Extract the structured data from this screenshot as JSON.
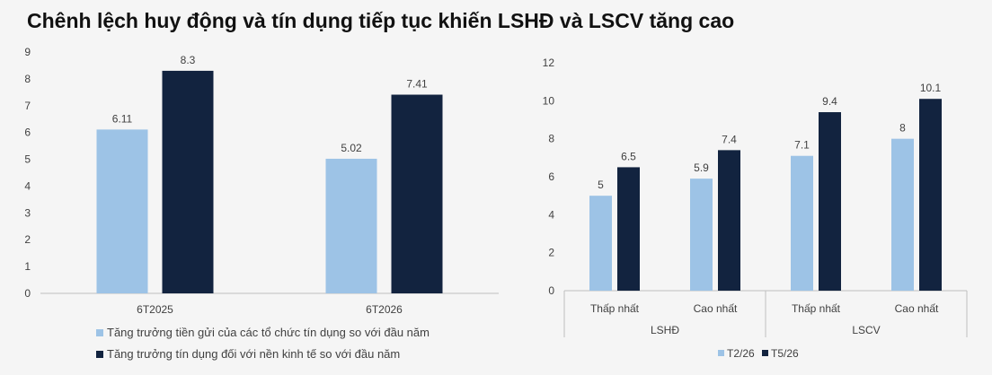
{
  "title": "Chênh lệch huy động và tín dụng tiếp tục khiến LSHĐ và LSCV tăng cao",
  "colors": {
    "light": "#9dc3e6",
    "dark": "#12233f",
    "axis": "#bfbfbf",
    "text": "#404040"
  },
  "chart_data": [
    {
      "type": "bar",
      "categories": [
        "6T2025",
        "6T2026"
      ],
      "series": [
        {
          "name": "Tăng trưởng tiền gửi của các tổ chức tín dụng so với đầu năm",
          "values": [
            6.11,
            5.02
          ],
          "labels": [
            "6.11",
            "5.02"
          ]
        },
        {
          "name": "Tăng trưởng tín dụng đối với nền kinh tế so với đầu năm",
          "values": [
            8.3,
            7.41
          ],
          "labels": [
            "8.3",
            "7.41"
          ]
        }
      ],
      "ylim": [
        0,
        9
      ],
      "yticks": [
        "0",
        "1",
        "2",
        "3",
        "4",
        "5",
        "6",
        "7",
        "8",
        "9"
      ],
      "grid": false,
      "legend": "bottom"
    },
    {
      "type": "bar",
      "groups": [
        {
          "label": "LSHĐ",
          "categories": [
            "Thấp nhất",
            "Cao nhất"
          ]
        },
        {
          "label": "LSCV",
          "categories": [
            "Thấp nhất",
            "Cao nhất"
          ]
        }
      ],
      "series": [
        {
          "name": "T2/26",
          "values": [
            5,
            5.9,
            7.1,
            8
          ],
          "labels": [
            "5",
            "5.9",
            "7.1",
            "8"
          ]
        },
        {
          "name": "T5/26",
          "values": [
            6.5,
            7.4,
            9.4,
            10.1
          ],
          "labels": [
            "6.5",
            "7.4",
            "9.4",
            "10.1"
          ]
        }
      ],
      "ylim": [
        0,
        12
      ],
      "yticks": [
        "0",
        "2",
        "4",
        "6",
        "8",
        "10",
        "12"
      ],
      "grid": false,
      "legend": "bottom"
    }
  ]
}
